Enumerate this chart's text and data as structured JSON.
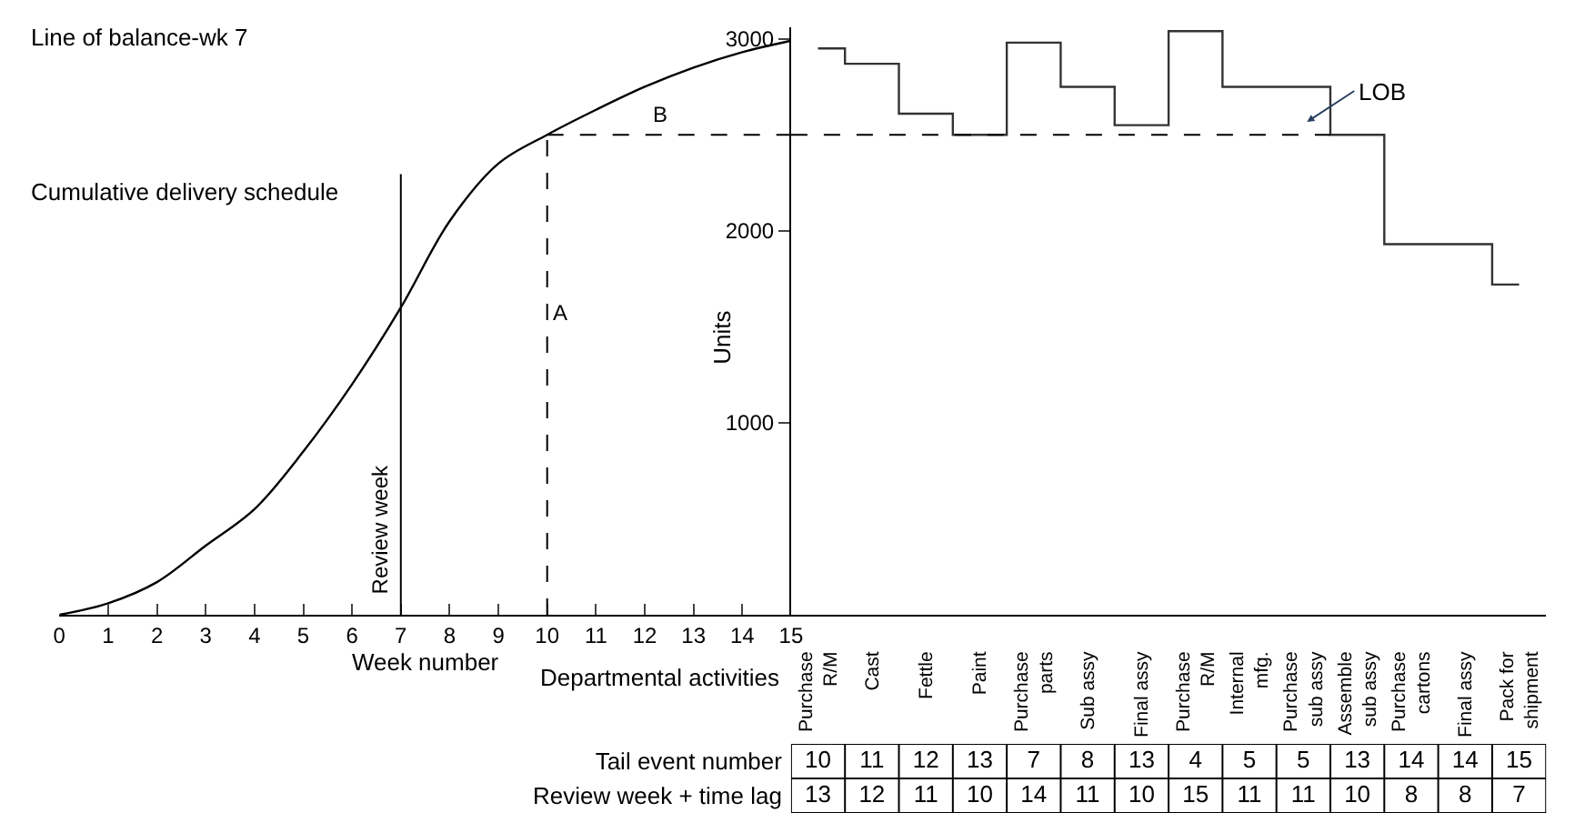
{
  "chart_data": [
    {
      "type": "line",
      "title": "Line of balance-wk 7",
      "xlabel": "Week number",
      "x": [
        0,
        1,
        2,
        3,
        4,
        5,
        6,
        7,
        8,
        9,
        10,
        11,
        12,
        13,
        14,
        15
      ],
      "series": [
        {
          "color": "#000000",
          "values": [
            0,
            60,
            170,
            360,
            550,
            850,
            1200,
            1600,
            2050,
            2350,
            2500,
            2630,
            2750,
            2850,
            2930,
            2990
          ]
        }
      ],
      "xlim": [
        0,
        15
      ],
      "xticks": [
        0,
        1,
        2,
        3,
        4,
        5,
        6,
        7,
        8,
        9,
        10,
        11,
        12,
        13,
        14,
        15
      ],
      "ylim": [
        0,
        3060
      ],
      "tick_labels": "x",
      "annotations": [
        "Cumulative delivery schedule"
      ],
      "ref_lines": [
        {
          "axis": "x",
          "value": 7,
          "label": "Review week",
          "line_style": "solid",
          "color": "#000000"
        },
        {
          "axis": "x",
          "value": 10,
          "label": "A",
          "line_style": "dashed",
          "color": "#000000"
        },
        {
          "axis": "y",
          "value": 2500,
          "label": "B",
          "line_style": "dashed",
          "color": "#000000"
        }
      ]
    },
    {
      "type": "step",
      "xlabel": "Departmental activities",
      "ylabel": "Units",
      "categories": [
        "Purchase R/M",
        "Cast",
        "Fettle",
        "Paint",
        "Purchase parts",
        "Sub assy",
        "Final assy",
        "Purchase R/M",
        "Internal mfg.",
        "Purchase sub assy",
        "Assemble sub assy",
        "Purchase cartons",
        "Final assy",
        "Pack for shipment"
      ],
      "series": [
        {
          "color": "#333333",
          "values": [
            2950,
            2870,
            2610,
            2500,
            2980,
            2750,
            2550,
            3040,
            2750,
            2750,
            2500,
            1930,
            1930,
            1720
          ]
        }
      ],
      "ylim": [
        0,
        3060
      ],
      "yticks": [
        1000,
        2000,
        3000
      ],
      "annotations": [
        "LOB"
      ],
      "ref_lines": [
        {
          "axis": "y",
          "value": 2500,
          "line_style": "dashed",
          "color": "#000000"
        }
      ]
    },
    {
      "type": "heatmap",
      "categories": [
        null,
        null,
        null,
        null,
        null,
        null,
        null,
        null,
        null,
        null,
        null,
        null,
        null,
        null
      ],
      "y_categories": [
        "Tail event number",
        "Review week + time lag"
      ],
      "data_labels": true,
      "cells": [
        [
          10,
          11,
          12,
          13,
          7,
          8,
          13,
          4,
          5,
          5,
          13,
          14,
          14,
          15
        ],
        [
          13,
          12,
          11,
          10,
          14,
          11,
          10,
          15,
          11,
          11,
          10,
          8,
          8,
          7
        ]
      ]
    }
  ]
}
